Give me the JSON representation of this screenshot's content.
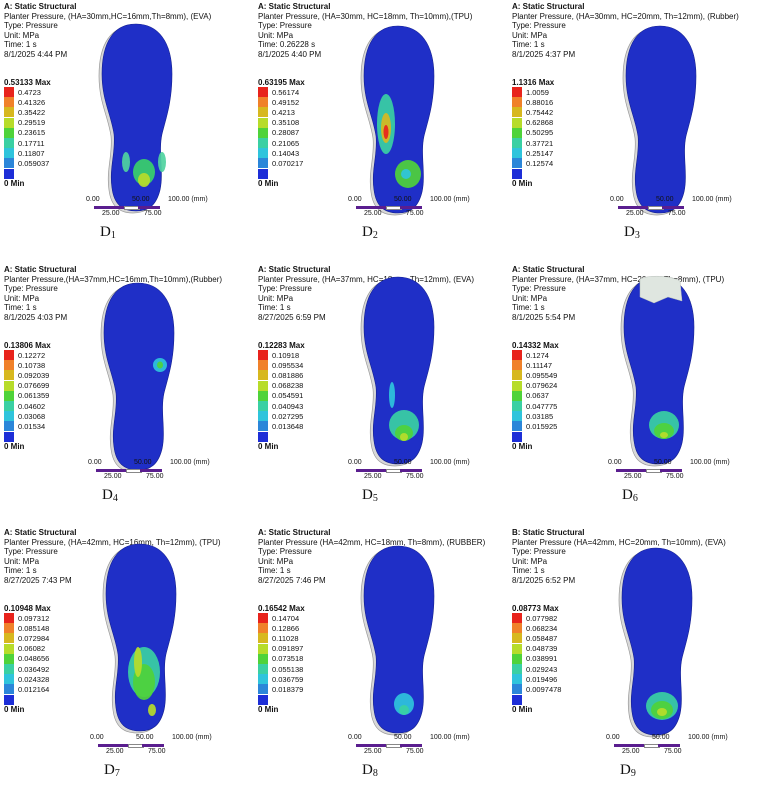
{
  "panels": [
    {
      "id": "D1",
      "label": "D",
      "sub": "1",
      "header": [
        "A: Static Structural",
        "Planter Pressure, (HA=30mm,HC=16mm,Th=8mm), (EVA)",
        "Type: Pressure",
        "Unit: MPa",
        "Time: 1 s",
        "8/1/2025 4:44 PM"
      ],
      "max": "0.53133 Max",
      "levels": [
        "0.4723",
        "0.41326",
        "0.35422",
        "0.29519",
        "0.23615",
        "0.17711",
        "0.11807",
        "0.059037"
      ],
      "min": "0 Min",
      "scale": [
        "0.00",
        "50.00",
        "100.00 (mm)",
        "25.00",
        "75.00"
      ]
    },
    {
      "id": "D2",
      "label": "D",
      "sub": "2",
      "header": [
        "A: Static Structural",
        "Planter Pressure, (HA=30mm, HC=18mm, Th=10mm),(TPU)",
        "Type: Pressure",
        "Unit: MPa",
        "Time: 0.26228 s",
        "8/1/2025 4:40 PM"
      ],
      "max": "0.63195 Max",
      "levels": [
        "0.56174",
        "0.49152",
        "0.4213",
        "0.35108",
        "0.28087",
        "0.21065",
        "0.14043",
        "0.070217"
      ],
      "min": "0 Min",
      "scale": [
        "0.00",
        "50.00",
        "100.00 (mm)",
        "25.00",
        "75.00"
      ]
    },
    {
      "id": "D3",
      "label": "D",
      "sub": "3",
      "header": [
        "A: Static Structural",
        "Planter Pressure, (HA=30mm, HC=20mm, Th=12mm), (Rubber)",
        "Type: Pressure",
        "Unit: MPa",
        "Time: 1 s",
        "8/1/2025 4:37 PM"
      ],
      "max": "1.1316 Max",
      "levels": [
        "1.0059",
        "0.88016",
        "0.75442",
        "0.62868",
        "0.50295",
        "0.37721",
        "0.25147",
        "0.12574"
      ],
      "min": "0 Min",
      "scale": [
        "0.00",
        "50.00",
        "100.00 (mm)",
        "25.00",
        "75.00"
      ]
    },
    {
      "id": "D4",
      "label": "D",
      "sub": "4",
      "header": [
        "A: Static Structural",
        "Planter Pressure,(HA=37mm,HC=16mm,Th=10mm),(Rubber)",
        "Type: Pressure",
        "Unit: MPa",
        "Time: 1 s",
        "8/1/2025 4:03 PM"
      ],
      "max": "0.13806 Max",
      "levels": [
        "0.12272",
        "0.10738",
        "0.092039",
        "0.076699",
        "0.061359",
        "0.04602",
        "0.03068",
        "0.01534"
      ],
      "min": "0 Min",
      "scale": [
        "0.00",
        "50.00",
        "100.00 (mm)",
        "25.00",
        "75.00"
      ]
    },
    {
      "id": "D5",
      "label": "D",
      "sub": "5",
      "header": [
        "A: Static Structural",
        "Planter Pressure, (HA=37mm, HC=18mm, Th=12mm), (EVA)",
        "Type: Pressure",
        "Unit: MPa",
        "Time: 1 s",
        "8/27/2025 6:59 PM"
      ],
      "max": "0.12283 Max",
      "levels": [
        "0.10918",
        "0.095534",
        "0.081886",
        "0.068238",
        "0.054591",
        "0.040943",
        "0.027295",
        "0.013648"
      ],
      "min": "0 Min",
      "scale": [
        "0.00",
        "50.00",
        "100.00 (mm)",
        "25.00",
        "75.00"
      ]
    },
    {
      "id": "D6",
      "label": "D",
      "sub": "6",
      "header": [
        "A: Static Structural",
        "Planter Pressure,  (HA=37mm, HC=20mm, Th=8mm), (TPU)",
        "Type: Pressure",
        "Unit: MPa",
        "Time: 1 s",
        "8/1/2025 5:54 PM"
      ],
      "max": "0.14332 Max",
      "levels": [
        "0.1274",
        "0.11147",
        "0.095549",
        "0.079624",
        "0.0637",
        "0.047775",
        "0.03185",
        "0.015925"
      ],
      "min": "0 Min",
      "scale": [
        "0.00",
        "50.00",
        "100.00 (mm)",
        "25.00",
        "75.00"
      ]
    },
    {
      "id": "D7",
      "label": "D",
      "sub": "7",
      "header": [
        "A: Static Structural",
        "Planter Pressure,  (HA=42mm, HC=16mm, Th=12mm), (TPU)",
        "Type: Pressure",
        "Unit: MPa",
        "Time: 1 s",
        "8/27/2025 7:43 PM"
      ],
      "max": "0.10948 Max",
      "levels": [
        "0.097312",
        "0.085148",
        "0.072984",
        "0.06082",
        "0.048656",
        "0.036492",
        "0.024328",
        "0.012164"
      ],
      "min": "0 Min",
      "scale": [
        "0.00",
        "50.00",
        "100.00 (mm)",
        "25.00",
        "75.00"
      ]
    },
    {
      "id": "D8",
      "label": "D",
      "sub": "8",
      "header": [
        "A: Static Structural",
        "Planter Pressure (HA=42mm, HC=18mm, Th=8mm), (RUBBER)",
        "Type: Pressure",
        "Unit: MPa",
        "Time: 1 s",
        "8/27/2025 7:46 PM"
      ],
      "max": "0.16542 Max",
      "levels": [
        "0.14704",
        "0.12866",
        "0.11028",
        "0.091897",
        "0.073518",
        "0.055138",
        "0.036759",
        "0.018379"
      ],
      "min": "0 Min",
      "scale": [
        "0.00",
        "50.00",
        "100.00 (mm)",
        "25.00",
        "75.00"
      ]
    },
    {
      "id": "D9",
      "label": "D",
      "sub": "9",
      "header": [
        "B: Static Structural",
        "Planter Pressure (HA=42mm, HC=20mm, Th=10mm), (EVA)",
        "Type: Pressure",
        "Unit: MPa",
        "Time: 1 s",
        "8/1/2025 6:52 PM"
      ],
      "max": "0.08773 Max",
      "levels": [
        "0.077982",
        "0.068234",
        "0.058487",
        "0.048739",
        "0.038991",
        "0.029243",
        "0.019496",
        "0.0097478"
      ],
      "min": "0 Min",
      "scale": [
        "0.00",
        "50.00",
        "100.00 (mm)",
        "25.00",
        "75.00"
      ]
    }
  ],
  "colors": {
    "legend": [
      "#e8231c",
      "#f0812a",
      "#d7b81f",
      "#b7dc2a",
      "#4fd33a",
      "#3ad0a3",
      "#2fc4dc",
      "#2b86d9",
      "#1d2ed7"
    ],
    "foot_base": "#1f2fc7",
    "outline": "#9a9a9a",
    "scale_bar": "#5a1e8f"
  }
}
